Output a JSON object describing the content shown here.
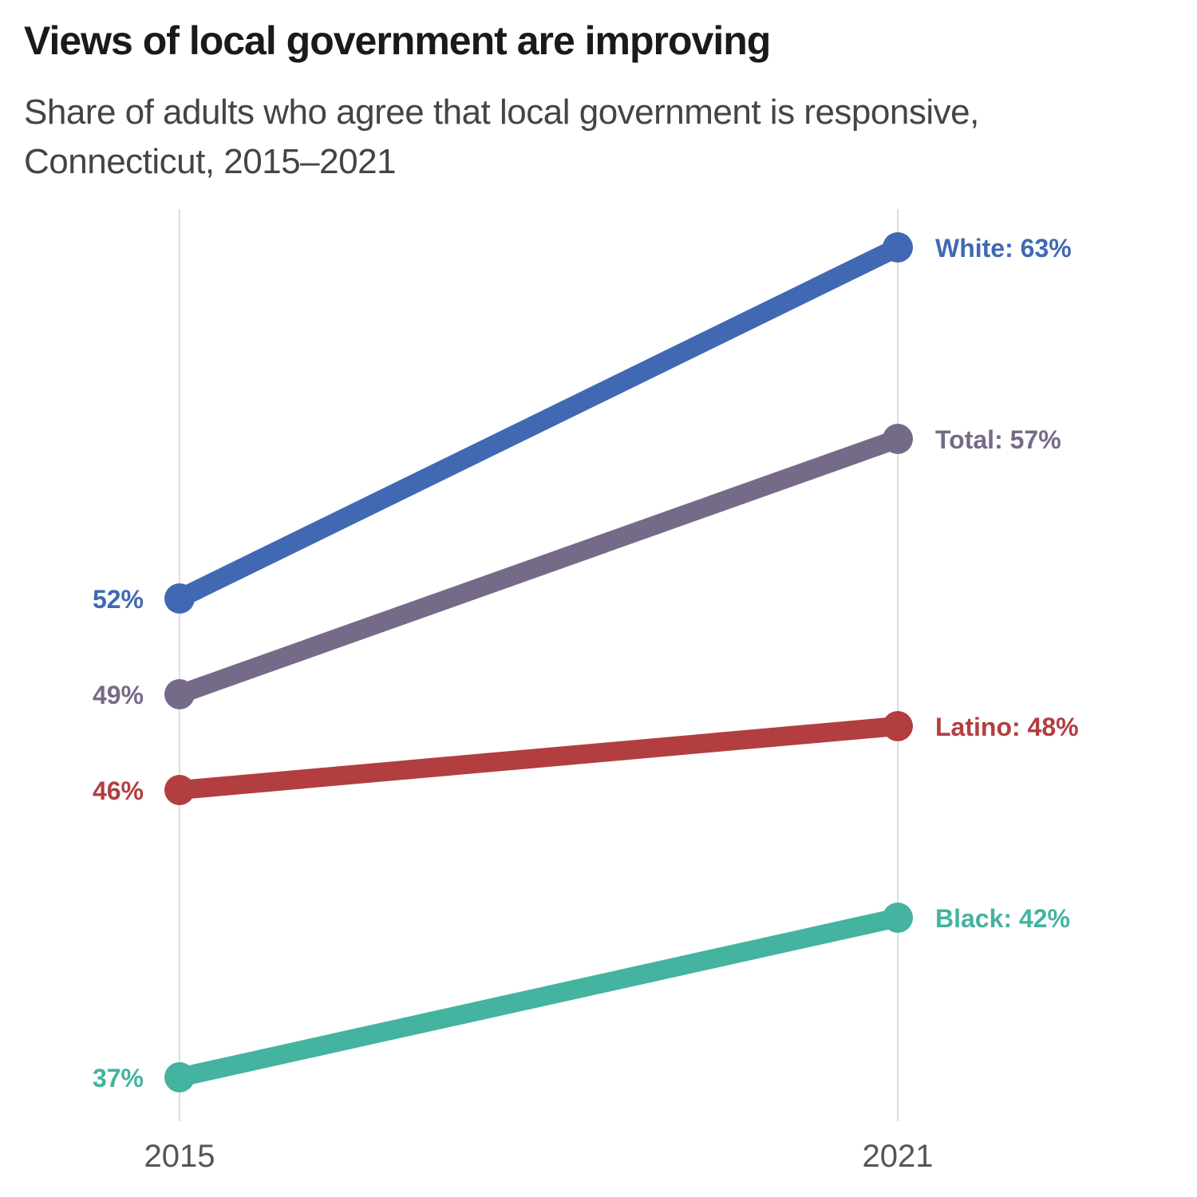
{
  "chart_data": {
    "type": "line",
    "title": "Views of local government are improving",
    "subtitle": "Share of adults who agree that local government is responsive, Connecticut, 2015–2021",
    "x": [
      "2015",
      "2021"
    ],
    "ylim": [
      37,
      63
    ],
    "grid": "vertical at each year",
    "legend": "direct labels at line ends",
    "series": [
      {
        "name": "White",
        "values": [
          52,
          63
        ],
        "color": "#4169b3",
        "start_label": "52%",
        "end_label": "White: 63%"
      },
      {
        "name": "Total",
        "values": [
          49,
          57
        ],
        "color": "#756b88",
        "start_label": "49%",
        "end_label": "Total: 57%"
      },
      {
        "name": "Latino",
        "values": [
          46,
          48
        ],
        "color": "#b23e40",
        "start_label": "46%",
        "end_label": "Latino: 48%"
      },
      {
        "name": "Black",
        "values": [
          37,
          42
        ],
        "color": "#44b3a0",
        "start_label": "37%",
        "end_label": "Black: 42%"
      }
    ]
  }
}
